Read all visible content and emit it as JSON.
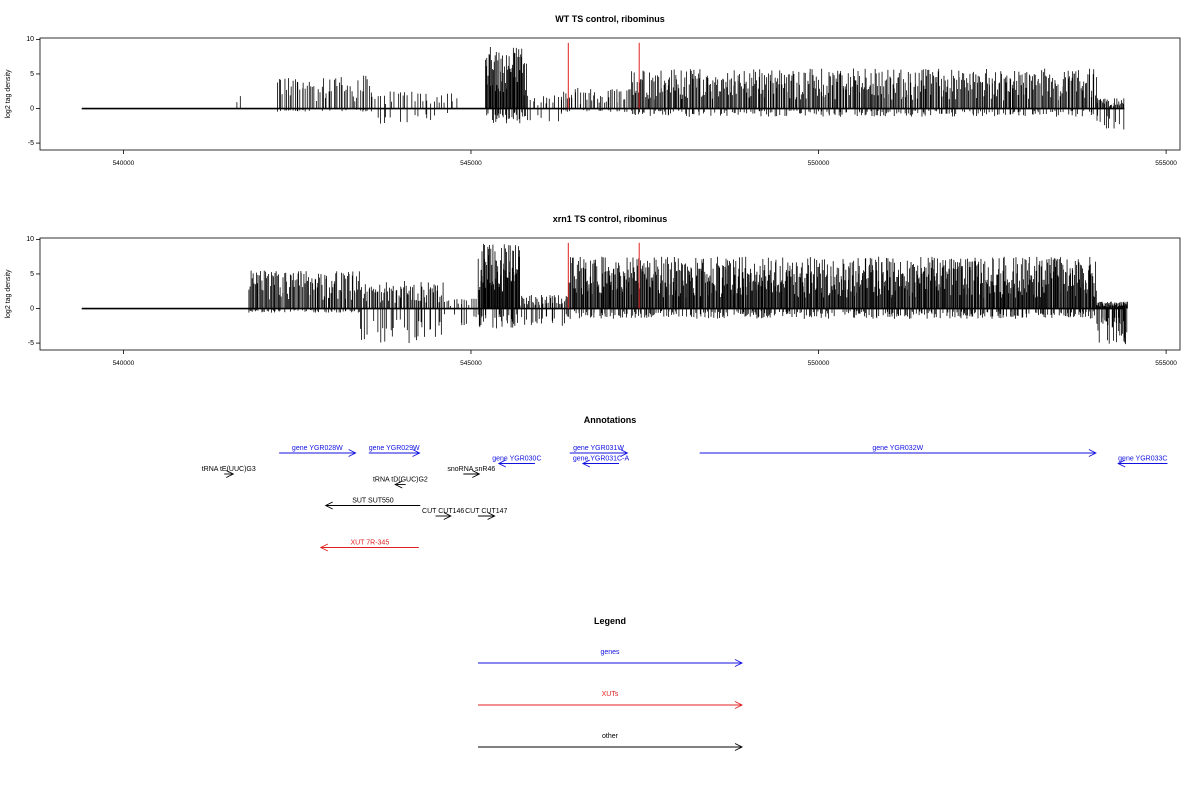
{
  "chart_data": [
    {
      "type": "bar",
      "title": "WT TS control, ribominus",
      "ylabel": "log2 tag density",
      "xlabel": "",
      "xlim": [
        538800,
        555200
      ],
      "ylim": [
        -6,
        10.2
      ],
      "xticks": [
        540000,
        545000,
        550000,
        555000
      ],
      "xtick_labels": [
        "540000",
        "545000",
        "550000",
        "555000"
      ],
      "yticks": [
        10,
        5,
        0,
        -5
      ],
      "ytick_labels": [
        "10",
        "5",
        "0",
        "-5"
      ],
      "baseline": {
        "from": 539400,
        "to": 554400,
        "y": 0
      },
      "markers": {
        "color": "#e02020",
        "positions": [
          546400,
          547420
        ],
        "height": 9.5
      },
      "grid": false,
      "series": [
        {
          "color": "#000000",
          "segments": [
            {
              "from": 541600,
              "to": 541700,
              "count": 2,
              "pos_max": 1.8,
              "neg_max": 0
            },
            {
              "from": 542200,
              "to": 543600,
              "count": 55,
              "pos_max": 4.8,
              "neg_max": 0.5
            },
            {
              "from": 543600,
              "to": 544800,
              "count": 30,
              "pos_max": 2.5,
              "neg_max": 2.3
            },
            {
              "from": 545200,
              "to": 545800,
              "count": 60,
              "pos_max": 9.0,
              "neg_max": 2.2
            },
            {
              "from": 545800,
              "to": 546300,
              "count": 14,
              "pos_max": 2.0,
              "neg_max": 2.0
            },
            {
              "from": 546300,
              "to": 547300,
              "count": 40,
              "pos_max": 3.0,
              "neg_max": 0.5
            },
            {
              "from": 547300,
              "to": 554000,
              "count": 460,
              "pos_max": 5.8,
              "neg_max": 1.2
            },
            {
              "from": 554000,
              "to": 554400,
              "count": 30,
              "pos_max": 1.5,
              "neg_max": 3.4
            }
          ]
        }
      ]
    },
    {
      "type": "bar",
      "title": "xrn1 TS control, ribominus",
      "ylabel": "log2 tag density",
      "xlabel": "",
      "xlim": [
        538800,
        555200
      ],
      "ylim": [
        -6,
        10.2
      ],
      "xticks": [
        540000,
        545000,
        550000,
        555000
      ],
      "xtick_labels": [
        "540000",
        "545000",
        "550000",
        "555000"
      ],
      "yticks": [
        10,
        5,
        0,
        -5
      ],
      "ytick_labels": [
        "10",
        "5",
        "0",
        "-5"
      ],
      "baseline": {
        "from": 539400,
        "to": 554400,
        "y": 0
      },
      "markers": {
        "color": "#e02020",
        "positions": [
          546400,
          547420
        ],
        "height": 9.5
      },
      "grid": false,
      "series": [
        {
          "color": "#000000",
          "segments": [
            {
              "from": 541800,
              "to": 543400,
              "count": 110,
              "pos_max": 5.5,
              "neg_max": 0.6
            },
            {
              "from": 543400,
              "to": 544600,
              "count": 70,
              "pos_max": 4.0,
              "neg_max": 5.0
            },
            {
              "from": 544600,
              "to": 545100,
              "count": 15,
              "pos_max": 1.5,
              "neg_max": 2.5
            },
            {
              "from": 545100,
              "to": 545700,
              "count": 70,
              "pos_max": 9.5,
              "neg_max": 3.0
            },
            {
              "from": 545700,
              "to": 546400,
              "count": 40,
              "pos_max": 2.0,
              "neg_max": 2.5
            },
            {
              "from": 546400,
              "to": 554000,
              "count": 720,
              "pos_max": 7.5,
              "neg_max": 1.5
            },
            {
              "from": 554000,
              "to": 554450,
              "count": 60,
              "pos_max": 1.0,
              "neg_max": 5.2
            }
          ]
        }
      ]
    }
  ],
  "annotations": {
    "title": "Annotations",
    "xlim": [
      538800,
      555200
    ],
    "features": [
      {
        "label": "gene YGR028W",
        "from": 542240,
        "to": 543340,
        "strand": "+",
        "row": 0,
        "color": "#1010e0"
      },
      {
        "label": "gene YGR029W",
        "from": 543530,
        "to": 544260,
        "strand": "+",
        "row": 0,
        "color": "#1010e0"
      },
      {
        "label": "gene YGR030C",
        "from": 545400,
        "to": 545920,
        "strand": "-",
        "row": 1,
        "color": "#1010e0"
      },
      {
        "label": "gene YGR031W",
        "from": 546420,
        "to": 547250,
        "strand": "+",
        "row": 0,
        "color": "#1010e0"
      },
      {
        "label": "gene YGR031C-A",
        "from": 546610,
        "to": 547130,
        "strand": "-",
        "row": 1,
        "color": "#1010e0"
      },
      {
        "label": "gene YGR032W",
        "from": 548290,
        "to": 553990,
        "strand": "+",
        "row": 0,
        "color": "#1010e0"
      },
      {
        "label": "gene YGR033C",
        "from": 554310,
        "to": 555020,
        "strand": "-",
        "row": 1,
        "color": "#1010e0"
      },
      {
        "label": "tRNA tE(UUC)G3",
        "from": 541450,
        "to": 541580,
        "strand": "+",
        "row": 2,
        "color": "#000000"
      },
      {
        "label": "snoRNA snR46",
        "from": 544890,
        "to": 545120,
        "strand": "+",
        "row": 2,
        "color": "#000000"
      },
      {
        "label": "tRNA tD(GUC)G2",
        "from": 543910,
        "to": 544060,
        "strand": "-",
        "row": 3,
        "color": "#000000"
      },
      {
        "label": "SUT SUT550",
        "from": 542910,
        "to": 544270,
        "strand": "-",
        "row": 5,
        "color": "#000000"
      },
      {
        "label": "CUT CUT146",
        "from": 544490,
        "to": 544710,
        "strand": "+",
        "row": 6,
        "color": "#000000"
      },
      {
        "label": "CUT CUT147",
        "from": 545100,
        "to": 545340,
        "strand": "+",
        "row": 6,
        "color": "#000000"
      },
      {
        "label": "XUT 7R-345",
        "from": 542840,
        "to": 544250,
        "strand": "-",
        "row": 9,
        "color": "#e02020"
      }
    ]
  },
  "legend": {
    "title": "Legend",
    "entries": [
      {
        "label": "genes",
        "color": "#1010e0"
      },
      {
        "label": "XUTs",
        "color": "#e02020"
      },
      {
        "label": "other",
        "color": "#000000"
      }
    ]
  }
}
